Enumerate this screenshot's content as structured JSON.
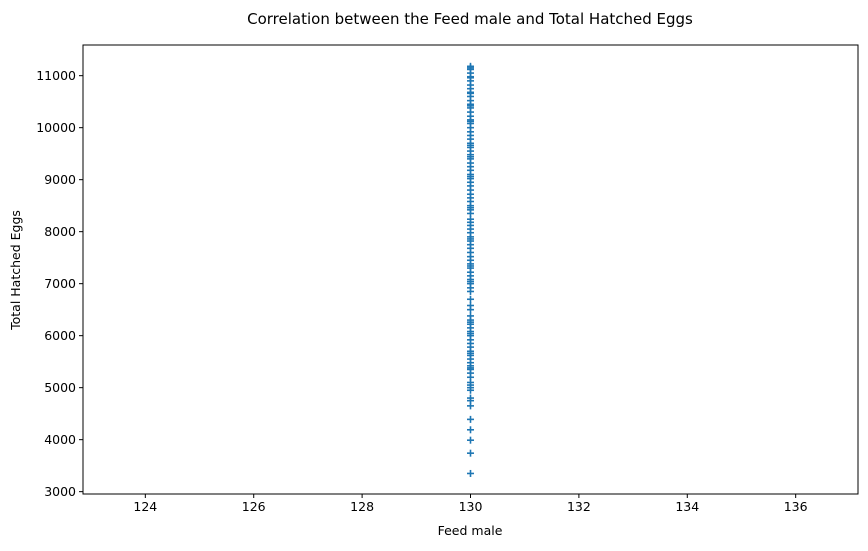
{
  "chart_data": {
    "type": "scatter",
    "title": "Correlation between the Feed male and Total Hatched Eggs",
    "xlabel": "Feed male",
    "ylabel": "Total Hatched Eggs",
    "xlim": [
      122.85,
      137.15
    ],
    "ylim": [
      2955,
      11590
    ],
    "xticks": [
      124,
      126,
      128,
      130,
      132,
      134,
      136
    ],
    "yticks": [
      3000,
      4000,
      5000,
      6000,
      7000,
      8000,
      9000,
      10000,
      11000
    ],
    "grid": false,
    "marker": "+",
    "color": "#1f77b4",
    "series": [
      {
        "x": [
          130,
          130,
          130,
          130,
          130,
          130,
          130,
          130,
          130,
          130,
          130,
          130,
          130,
          130,
          130,
          130,
          130,
          130,
          130,
          130,
          130,
          130,
          130,
          130,
          130,
          130,
          130,
          130,
          130,
          130,
          130,
          130,
          130,
          130,
          130,
          130,
          130,
          130,
          130,
          130,
          130,
          130,
          130,
          130,
          130,
          130,
          130,
          130,
          130,
          130,
          130,
          130,
          130,
          130,
          130,
          130,
          130,
          130,
          130,
          130,
          130,
          130,
          130,
          130,
          130,
          130,
          130,
          130,
          130,
          130,
          130,
          130,
          130,
          130,
          130,
          130,
          130,
          130,
          130,
          130,
          130,
          130,
          130,
          130,
          130,
          130,
          130,
          130,
          130,
          130,
          130,
          130,
          130,
          130,
          130,
          130,
          130,
          130,
          130,
          130,
          130,
          130,
          130,
          130,
          130,
          130,
          130
        ],
        "y": [
          3350,
          3740,
          3990,
          4190,
          4390,
          4650,
          4750,
          4800,
          4950,
          5000,
          5050,
          5100,
          5200,
          5280,
          5350,
          5420,
          5480,
          5550,
          5620,
          5700,
          5780,
          5850,
          5920,
          6000,
          6080,
          6150,
          6220,
          6300,
          6380,
          6500,
          6580,
          6700,
          6850,
          6920,
          7000,
          7080,
          7150,
          7220,
          7300,
          7380,
          7450,
          7520,
          7600,
          7680,
          7750,
          7820,
          7900,
          7980,
          8050,
          8120,
          8180,
          8350,
          8420,
          8500,
          8580,
          8650,
          8720,
          8800,
          8880,
          8950,
          9020,
          9100,
          9180,
          9250,
          9320,
          9400,
          9480,
          9550,
          9620,
          9700,
          9780,
          9850,
          9920,
          10000,
          10080,
          10150,
          10220,
          10300,
          10380,
          10450,
          10520,
          10600,
          10680,
          10750,
          10820,
          10900,
          10980,
          11050,
          11120,
          11180,
          5380,
          5660,
          6040,
          6260,
          7040,
          7340,
          7860,
          8240,
          8460,
          9060,
          9440,
          9660,
          10120,
          10420,
          10660,
          10960,
          11150
        ]
      }
    ]
  }
}
